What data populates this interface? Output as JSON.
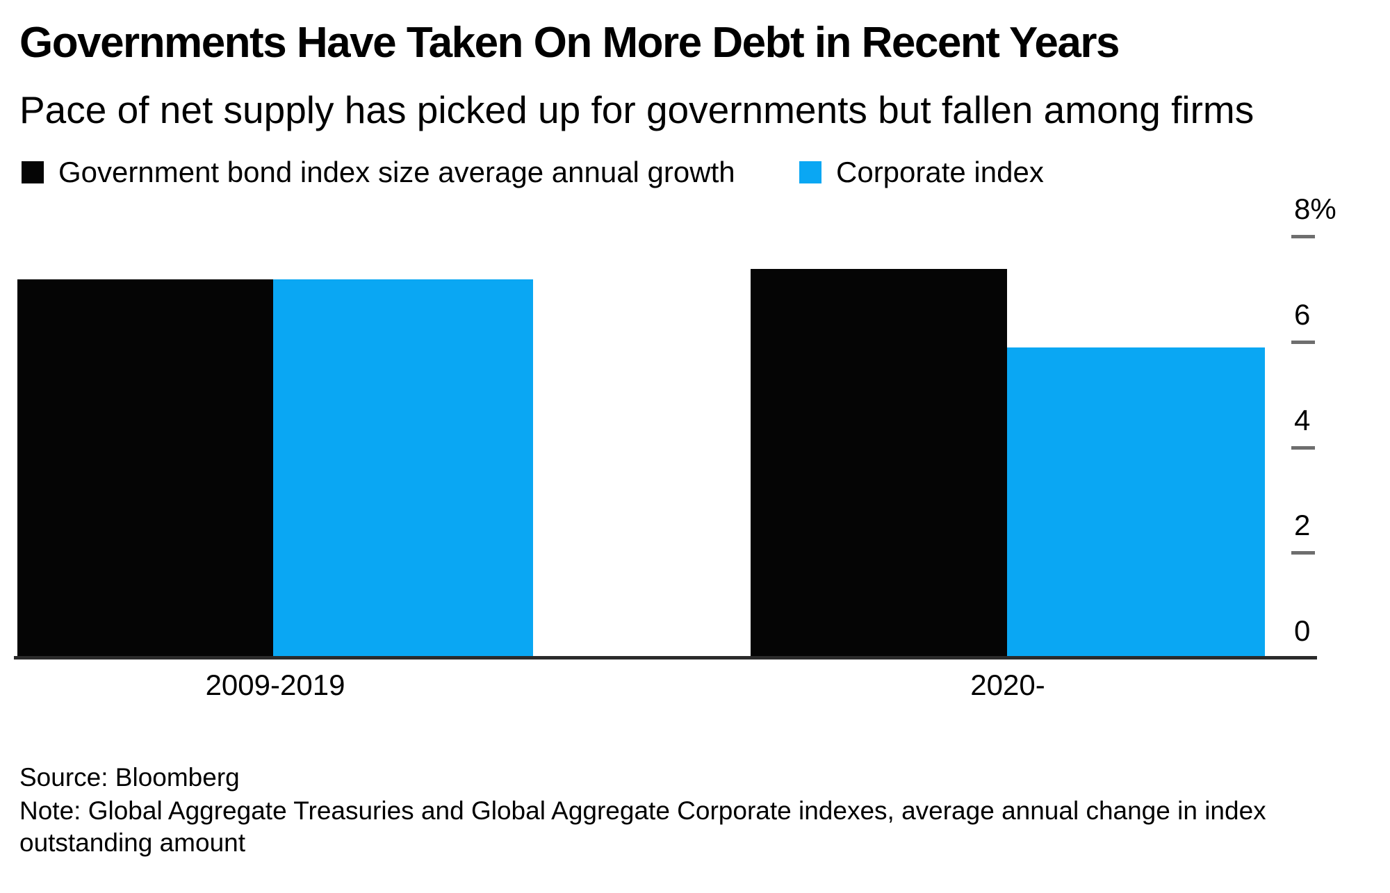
{
  "chart_data": {
    "type": "bar",
    "title": "Governments Have Taken On More Debt in Recent Years",
    "subtitle": "Pace of net supply has picked up for governments but fallen among firms",
    "categories": [
      "2009-2019",
      "2020-"
    ],
    "series": [
      {
        "name": "Government bond index size average annual growth",
        "color": "#050505",
        "values": [
          7.2,
          7.4
        ]
      },
      {
        "name": "Corporate index",
        "color": "#0aa7f3",
        "values": [
          7.2,
          5.9
        ]
      }
    ],
    "y_axis": {
      "side": "right",
      "range": [
        0,
        8
      ],
      "unit": "%",
      "ticks": [
        0,
        2,
        4,
        6,
        8
      ],
      "tick_labels": [
        "0",
        "2",
        "4",
        "6",
        "8%"
      ]
    },
    "legend_position": "top-left",
    "grid": false,
    "source": "Source: Bloomberg",
    "note": "Note: Global Aggregate Treasuries and Global Aggregate Corporate indexes, average annual change in index outstanding amount"
  },
  "footer": {
    "note_lines": [
      "Note: Global Aggregate Treasuries and Global Aggregate Corporate indexes, average annual change in index",
      "outstanding amount"
    ]
  },
  "colors": {
    "background": "#ffffff",
    "text": "#000000",
    "axis_line": "#2b2b2b",
    "tick": "#6e6e6e"
  }
}
